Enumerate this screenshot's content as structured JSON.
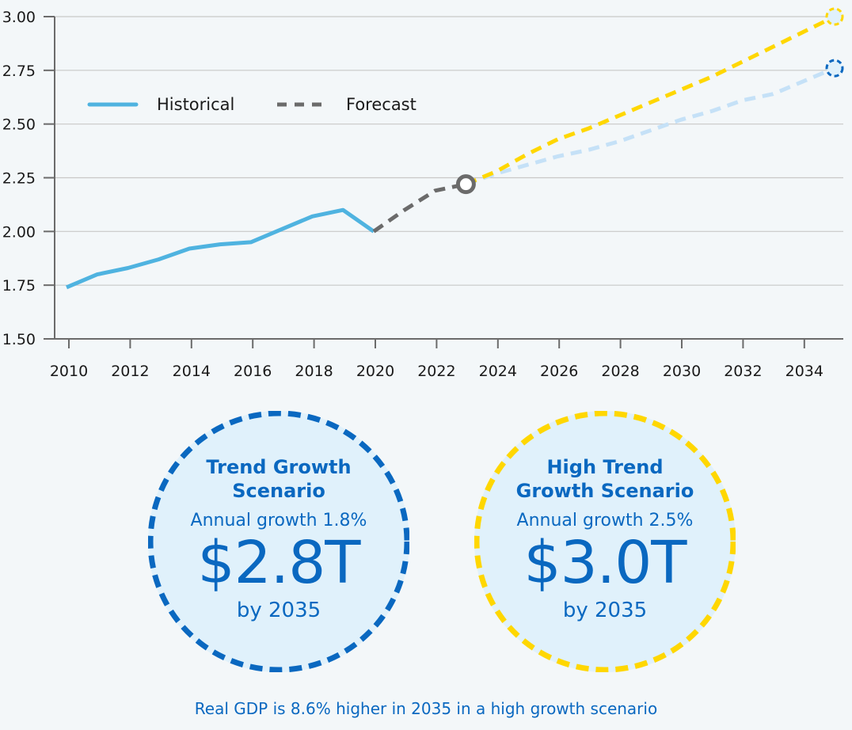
{
  "chart_data": {
    "type": "line",
    "title": "",
    "xlabel": "",
    "ylabel": "",
    "xlim": [
      2010,
      2035
    ],
    "ylim": [
      1.5,
      3.0
    ],
    "grid": true,
    "legend_position": "top-left",
    "yticks": [
      "1.50",
      "1.75",
      "2.00",
      "2.25",
      "2.50",
      "2.75",
      "3.00"
    ],
    "xticks": [
      "2010",
      "2012",
      "2014",
      "2016",
      "2018",
      "2020",
      "2022",
      "2024",
      "2026",
      "2028",
      "2030",
      "2032",
      "2034"
    ],
    "legend": [
      {
        "name": "Historical",
        "style": "solid",
        "color": "#4fb3e0"
      },
      {
        "name": "Forecast",
        "style": "dashed",
        "color": "#6b6b6b"
      }
    ],
    "series": [
      {
        "name": "Historical",
        "color": "#4fb3e0",
        "style": "solid",
        "x": [
          2010,
          2011,
          2012,
          2013,
          2014,
          2015,
          2016,
          2017,
          2018,
          2019,
          2020
        ],
        "values": [
          1.74,
          1.8,
          1.83,
          1.87,
          1.92,
          1.94,
          1.95,
          2.01,
          2.07,
          2.1,
          2.0
        ]
      },
      {
        "name": "Forecast",
        "color": "#6b6b6b",
        "style": "dashed",
        "x": [
          2020,
          2021,
          2022,
          2023
        ],
        "values": [
          2.0,
          2.1,
          2.19,
          2.22
        ]
      },
      {
        "name": "Trend Growth Scenario",
        "color": "#c5e1f7",
        "style": "dashed",
        "x": [
          2023,
          2024,
          2025,
          2026,
          2027,
          2028,
          2029,
          2030,
          2031,
          2032,
          2033,
          2034,
          2035
        ],
        "values": [
          2.22,
          2.27,
          2.31,
          2.35,
          2.38,
          2.42,
          2.47,
          2.52,
          2.56,
          2.61,
          2.64,
          2.7,
          2.76
        ]
      },
      {
        "name": "High Trend Growth Scenario",
        "color": "#ffd700",
        "style": "dashed",
        "x": [
          2023,
          2024,
          2025,
          2026,
          2027,
          2028,
          2029,
          2030,
          2031,
          2032,
          2033,
          2034,
          2035
        ],
        "values": [
          2.22,
          2.28,
          2.36,
          2.43,
          2.48,
          2.54,
          2.6,
          2.66,
          2.72,
          2.79,
          2.86,
          2.93,
          3.0
        ]
      }
    ],
    "markers": [
      {
        "name": "forecast-start",
        "x": 2023,
        "value": 2.22,
        "color": "#6b6b6b"
      },
      {
        "name": "trend-end",
        "x": 2035,
        "value": 2.76,
        "color": "#0a68c0"
      },
      {
        "name": "high-end",
        "x": 2035,
        "value": 3.0,
        "color": "#ffd700"
      }
    ]
  },
  "scenarios": [
    {
      "title": "Trend Growth Scenario",
      "growth": "Annual growth 1.8%",
      "value": "$2.8T",
      "by": "by 2035",
      "ring_color": "#0a68c0"
    },
    {
      "title": "High Trend Growth Scenario",
      "growth": "Annual growth 2.5%",
      "value": "$3.0T",
      "by": "by 2035",
      "ring_color": "#ffd700"
    }
  ],
  "footnote": "Real GDP is 8.6% higher in 2035 in a high growth scenario"
}
